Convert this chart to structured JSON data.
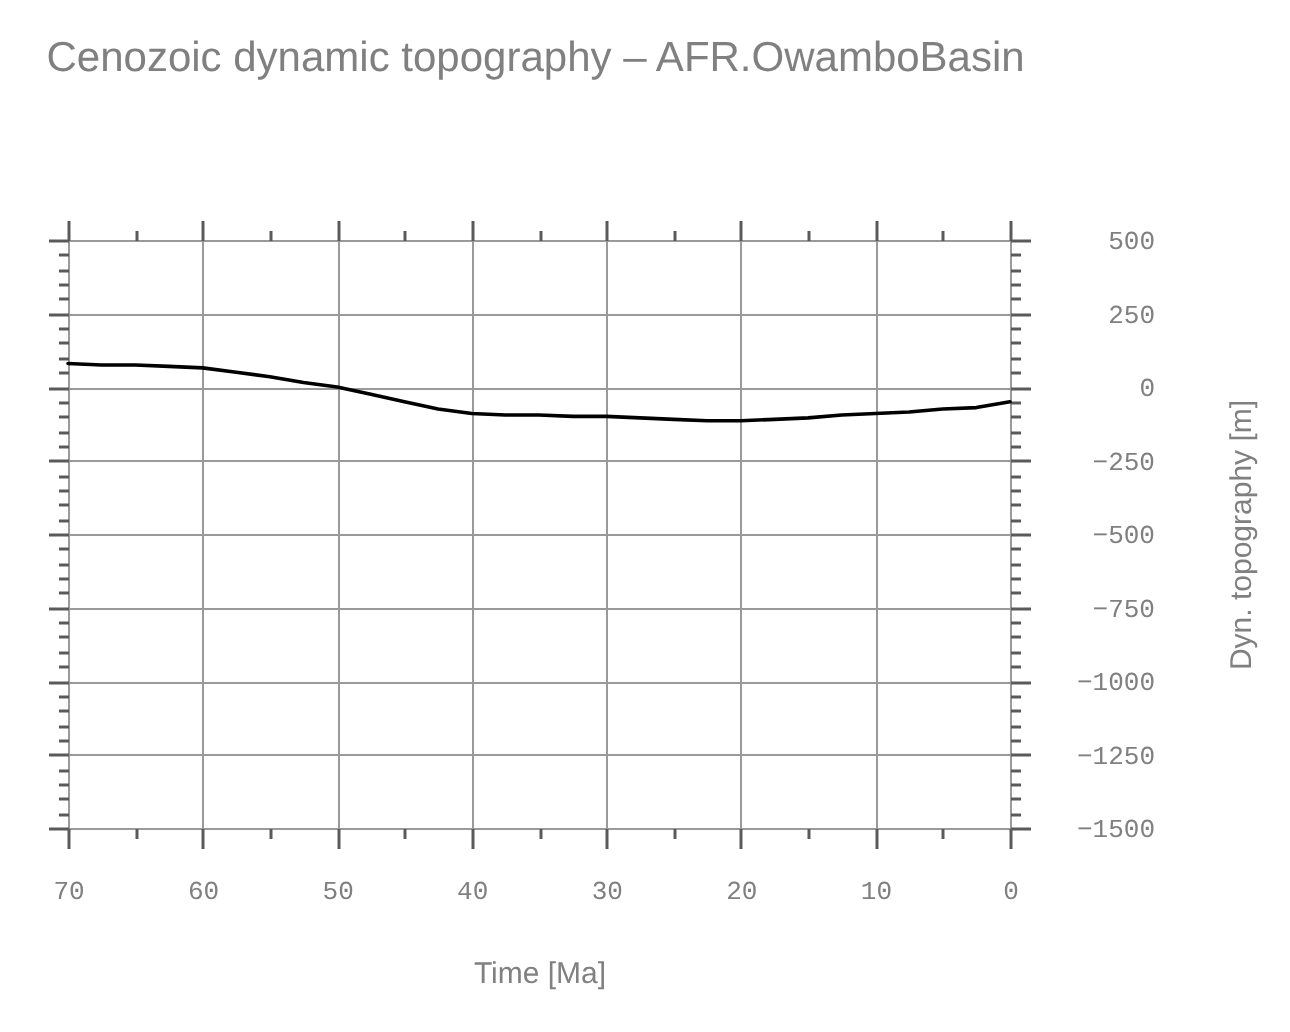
{
  "chart_data": {
    "type": "line",
    "title": "Cenozoic dynamic topography – AFR.OwamboBasin",
    "xlabel": "Time [Ma]",
    "ylabel": "Dyn. topography [m]",
    "x": [
      70,
      67.5,
      65,
      62.5,
      60,
      57.5,
      55,
      52.5,
      50,
      47.5,
      45,
      42.5,
      40,
      37.5,
      35,
      32.5,
      30,
      27.5,
      25,
      22.5,
      20,
      17.5,
      15,
      12.5,
      10,
      7.5,
      5,
      2.5,
      0
    ],
    "series": [
      {
        "color": "#000000",
        "values": [
          80,
          75,
          75,
          70,
          65,
          50,
          35,
          15,
          0,
          -25,
          -50,
          -75,
          -90,
          -95,
          -95,
          -100,
          -100,
          -105,
          -110,
          -115,
          -115,
          -110,
          -105,
          -95,
          -90,
          -85,
          -75,
          -70,
          -50
        ]
      }
    ],
    "xlim": [
      70,
      0
    ],
    "ylim": [
      -1500,
      500
    ],
    "xticks": [
      70,
      {
        "value": 65,
        "label": null
      },
      60,
      {
        "value": 55,
        "label": null
      },
      50,
      {
        "value": 45,
        "label": null
      },
      40,
      {
        "value": 35,
        "label": null
      },
      30,
      {
        "value": 25,
        "label": null
      },
      20,
      {
        "value": 15,
        "label": null
      },
      10,
      {
        "value": 5,
        "label": null
      },
      0
    ],
    "yticks": [
      -1500,
      {
        "value": -1450,
        "label": null
      },
      {
        "value": -1400,
        "label": null
      },
      {
        "value": -1350,
        "label": null
      },
      {
        "value": -1300,
        "label": null
      },
      -1250,
      {
        "value": -1200,
        "label": null
      },
      {
        "value": -1150,
        "label": null
      },
      {
        "value": -1100,
        "label": null
      },
      {
        "value": -1050,
        "label": null
      },
      -1000,
      {
        "value": -950,
        "label": null
      },
      {
        "value": -900,
        "label": null
      },
      {
        "value": -850,
        "label": null
      },
      {
        "value": -800,
        "label": null
      },
      -750,
      {
        "value": -700,
        "label": null
      },
      {
        "value": -650,
        "label": null
      },
      {
        "value": -600,
        "label": null
      },
      {
        "value": -550,
        "label": null
      },
      -500,
      {
        "value": -450,
        "label": null
      },
      {
        "value": -400,
        "label": null
      },
      {
        "value": -350,
        "label": null
      },
      {
        "value": -300,
        "label": null
      },
      -250,
      {
        "value": -200,
        "label": null
      },
      {
        "value": -150,
        "label": null
      },
      {
        "value": -100,
        "label": null
      },
      {
        "value": -50,
        "label": null
      },
      0,
      {
        "value": 50,
        "label": null
      },
      {
        "value": 100,
        "label": null
      },
      {
        "value": 150,
        "label": null
      },
      {
        "value": 200,
        "label": null
      },
      250,
      {
        "value": 300,
        "label": null
      },
      {
        "value": 350,
        "label": null
      },
      {
        "value": 400,
        "label": null
      },
      {
        "value": 450,
        "label": null
      },
      500
    ],
    "grid": true
  }
}
